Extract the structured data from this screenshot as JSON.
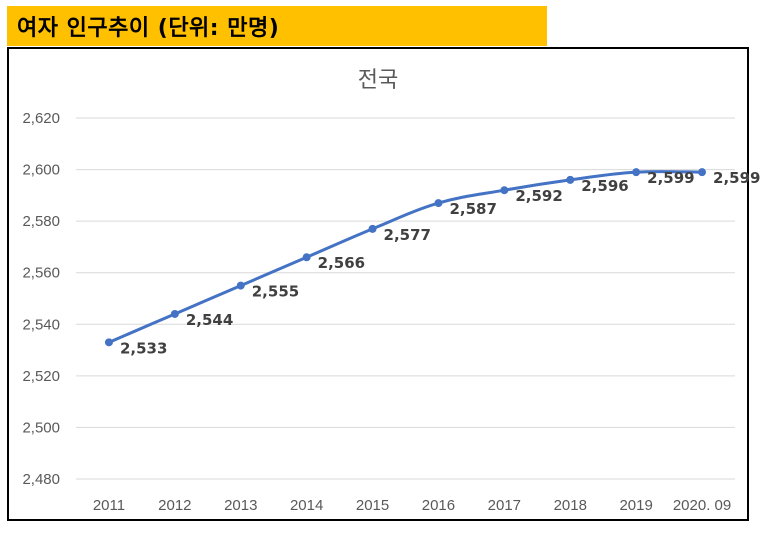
{
  "page": {
    "heading": "여자 인구추이 (단위: 만명)"
  },
  "chart_data": {
    "type": "line",
    "title": "전국",
    "xlabel": "",
    "ylabel": "",
    "categories": [
      "2011",
      "2012",
      "2013",
      "2014",
      "2015",
      "2016",
      "2017",
      "2018",
      "2019",
      "2020. 09"
    ],
    "series": [
      {
        "values": [
          2533,
          2544,
          2555,
          2566,
          2577,
          2587,
          2592,
          2596,
          2599,
          2599
        ],
        "color": "#4472c4"
      }
    ],
    "data_labels": [
      "2,533",
      "2,544",
      "2,555",
      "2,566",
      "2,577",
      "2,587",
      "2,592",
      "2,596",
      "2,599",
      "2,599"
    ],
    "yticks": [
      "2,480",
      "2,500",
      "2,520",
      "2,540",
      "2,560",
      "2,580",
      "2,600",
      "2,620"
    ],
    "ylim": [
      2480,
      2620
    ],
    "grid": true,
    "smooth": true,
    "markers": true,
    "legend": "none"
  }
}
